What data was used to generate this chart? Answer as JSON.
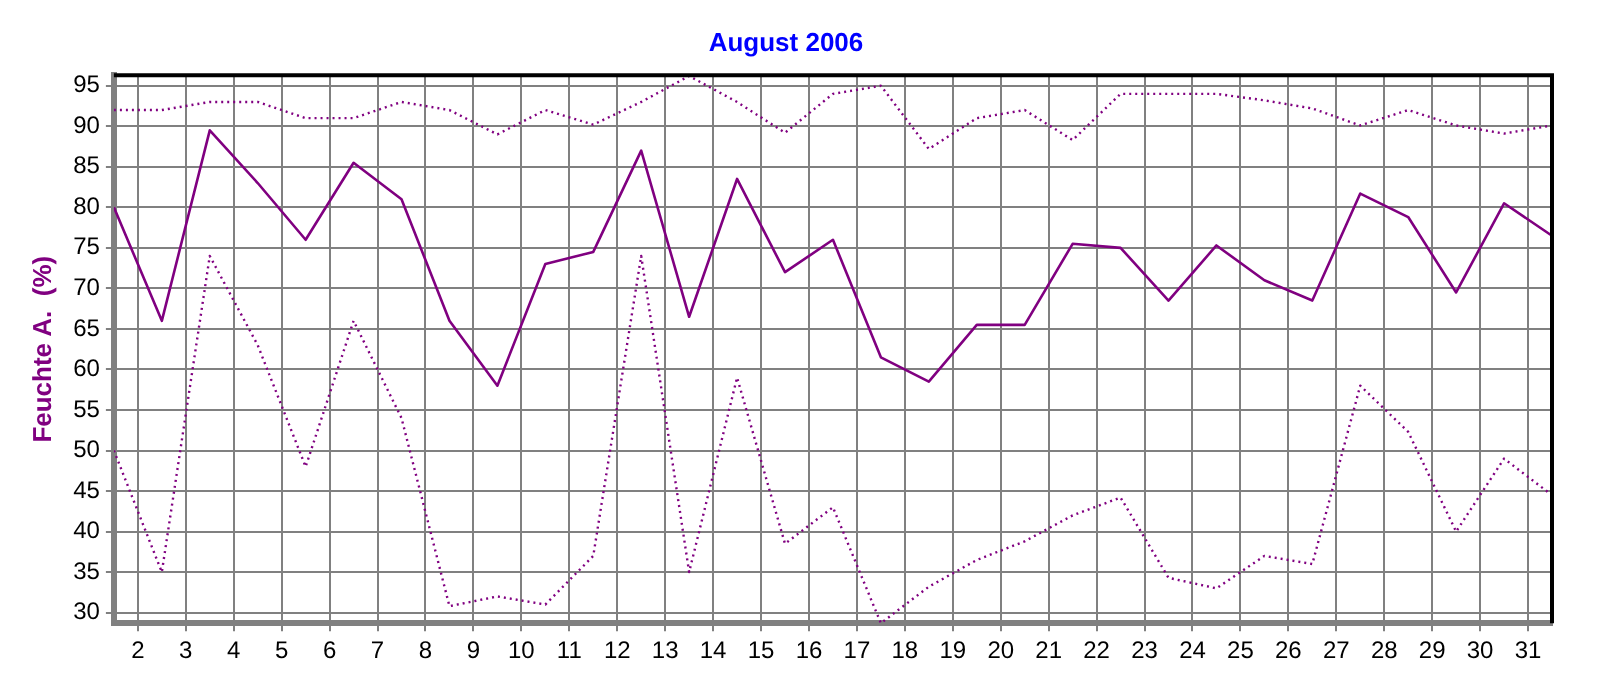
{
  "chart_data": {
    "type": "line",
    "title": "August 2006",
    "ylabel": "Feuchte A.  (%)",
    "x": [
      1.5,
      2.5,
      3.5,
      4.5,
      5.5,
      6.5,
      7.5,
      8.5,
      9.5,
      10.5,
      11.5,
      12.5,
      13.5,
      14.5,
      15.5,
      16.5,
      17.5,
      18.5,
      19.5,
      20.5,
      21.5,
      22.5,
      23.5,
      24.5,
      25.5,
      26.5,
      27.5,
      28.5,
      29.5,
      30.5,
      31.5
    ],
    "series": [
      {
        "color": "#800080",
        "line_style": "dotted",
        "values": [
          92,
          92,
          93,
          93,
          91,
          91,
          93,
          92,
          89,
          92,
          90.2,
          93,
          96.2,
          93,
          89.2,
          94,
          95,
          87.2,
          91,
          92,
          88.3,
          94,
          94,
          94,
          93.2,
          92.2,
          90.1,
          92,
          90.1,
          89.1,
          90.1
        ]
      },
      {
        "color": "#800080",
        "line_style": "solid",
        "values": [
          80,
          66,
          89.5,
          83,
          76,
          85.5,
          81,
          66,
          58,
          73,
          74.5,
          87,
          66.5,
          83.5,
          72,
          76,
          61.5,
          58.5,
          65.5,
          65.5,
          75.5,
          75,
          68.5,
          75.3,
          71,
          68.5,
          81.7,
          78.8,
          69.5,
          80.5,
          76.5
        ]
      },
      {
        "color": "#800080",
        "line_style": "dotted",
        "values": [
          50,
          35,
          74,
          63,
          48,
          66,
          54,
          30.8,
          32,
          31,
          37,
          74,
          35,
          59,
          38.5,
          43,
          28.7,
          33.2,
          36.5,
          38.8,
          42,
          44.2,
          34.3,
          33,
          37,
          36,
          58,
          52.3,
          40,
          49,
          44.5
        ]
      }
    ],
    "xlim": [
      1.5,
      31.5
    ],
    "xticks": [
      2,
      3,
      4,
      5,
      6,
      7,
      8,
      9,
      10,
      11,
      12,
      13,
      14,
      15,
      16,
      17,
      18,
      19,
      20,
      21,
      22,
      23,
      24,
      25,
      26,
      27,
      28,
      29,
      30,
      31
    ],
    "ylim": [
      28.7,
      96.3
    ],
    "yticks": [
      30,
      35,
      40,
      45,
      50,
      55,
      60,
      65,
      70,
      75,
      80,
      85,
      90,
      95
    ],
    "grid": true,
    "legend": false,
    "marker": "none"
  }
}
